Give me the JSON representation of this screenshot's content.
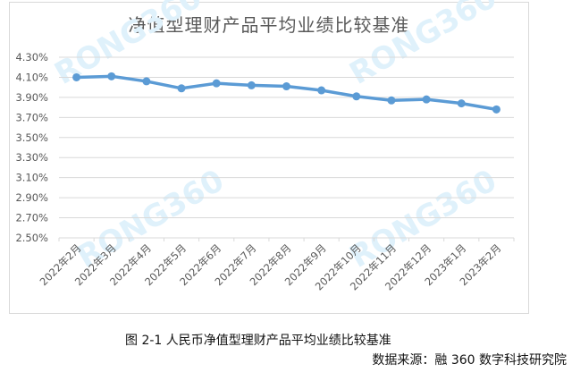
{
  "chart_data": {
    "type": "line",
    "title": "净值型理财产品平均业绩比较基准",
    "xlabel": "",
    "ylabel": "",
    "categories": [
      "2022年2月",
      "2022年3月",
      "2022年4月",
      "2022年5月",
      "2022年6月",
      "2022年7月",
      "2022年8月",
      "2022年9月",
      "2022年10月",
      "2022年11月",
      "2022年12月",
      "2023年1月",
      "2023年2月"
    ],
    "series": [
      {
        "name": "平均业绩比较基准",
        "values": [
          4.1,
          4.11,
          4.06,
          3.99,
          4.04,
          4.02,
          4.01,
          3.97,
          3.91,
          3.87,
          3.88,
          3.84,
          3.78
        ],
        "color": "#5b9bd5"
      }
    ],
    "yticks": [
      "4.30%",
      "4.10%",
      "3.90%",
      "3.70%",
      "3.50%",
      "3.30%",
      "3.10%",
      "2.90%",
      "2.70%",
      "2.50%"
    ],
    "ylim": [
      2.5,
      4.3
    ],
    "grid": true,
    "legend": "none",
    "watermark": "RONG360"
  },
  "caption": "图 2-1 人民币净值型理财产品平均业绩比较基准",
  "source": "数据来源：融 360 数字科技研究院"
}
